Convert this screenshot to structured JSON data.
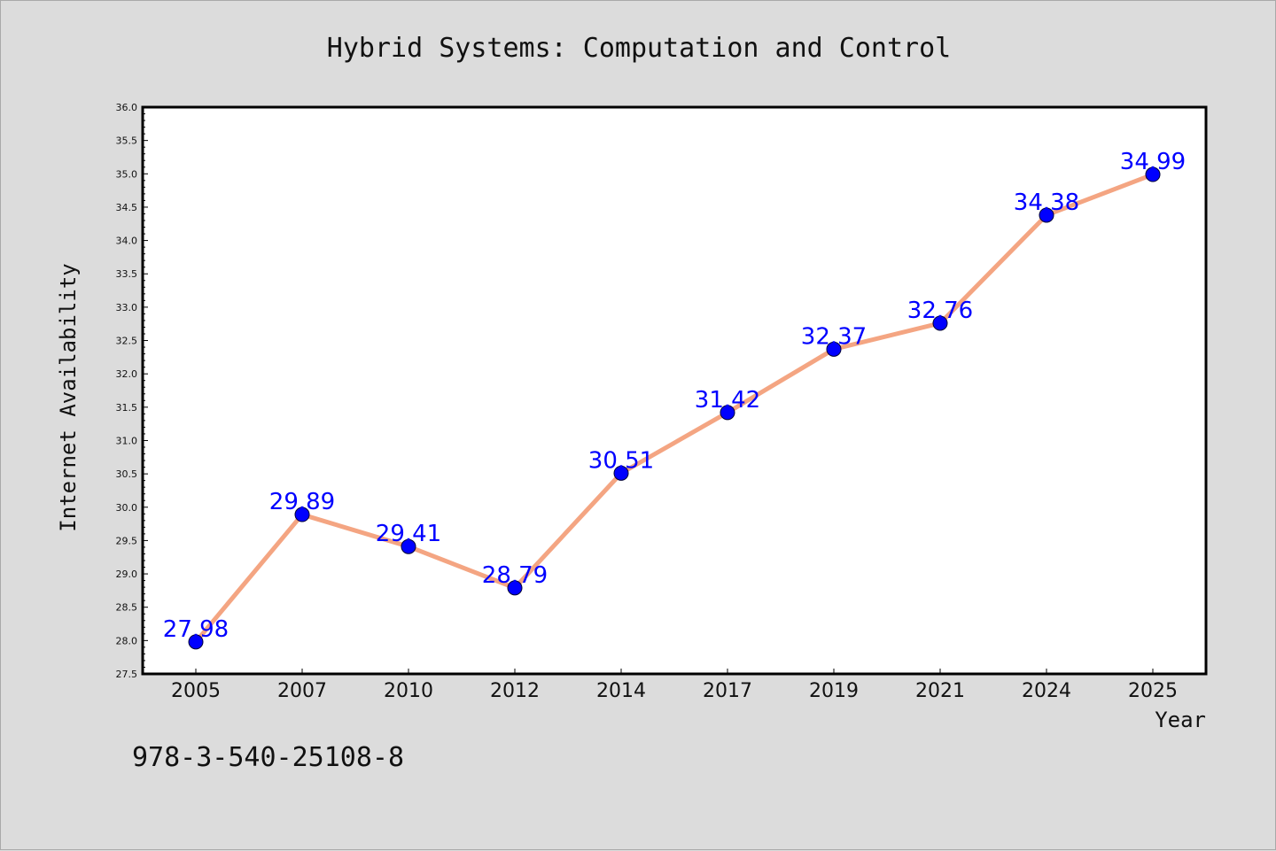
{
  "chart_data": {
    "type": "line",
    "title": "Hybrid Systems: Computation and Control",
    "xlabel": "Year",
    "ylabel": "Internet Availability",
    "categories": [
      "2005",
      "2007",
      "2010",
      "2012",
      "2014",
      "2017",
      "2019",
      "2021",
      "2024",
      "2025"
    ],
    "series": [
      {
        "values": [
          27.98,
          29.89,
          29.41,
          28.79,
          30.51,
          31.42,
          32.37,
          32.76,
          34.38,
          34.99
        ]
      }
    ],
    "data_labels": [
      "27.98",
      "29.89",
      "29.41",
      "28.79",
      "30.51",
      "31.42",
      "32.37",
      "32.76",
      "34.38",
      "34.99"
    ],
    "ylim": [
      27.5,
      36.0
    ],
    "yticks": [
      "27.5",
      "28.0",
      "28.5",
      "29.0",
      "29.5",
      "30.0",
      "30.5",
      "31.0",
      "31.5",
      "32.0",
      "32.5",
      "33.0",
      "33.5",
      "34.0",
      "34.5",
      "35.0",
      "35.5",
      "36.0"
    ],
    "grid": false,
    "legend": "none",
    "line_color": "#f4a582",
    "marker_color": "#0000ff",
    "label_color": "#0000ff"
  },
  "footer_text": "978-3-540-25108-8"
}
